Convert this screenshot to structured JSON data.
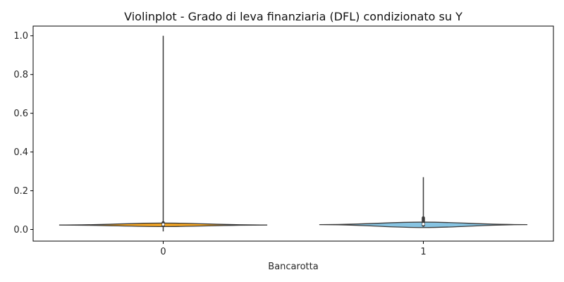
{
  "chart_data": {
    "type": "violin",
    "title": "Violinplot - Grado di leva finanziaria (DFL) condizionato su Y",
    "xlabel": "Bancarotta",
    "ylabel": "",
    "categories": [
      "0",
      "1"
    ],
    "ylim": [
      -0.06,
      1.05
    ],
    "yticks": [
      "0.0",
      "0.2",
      "0.4",
      "0.6",
      "0.8",
      "1.0"
    ],
    "grid": false,
    "colors": [
      "#f5a623",
      "#87c4e2"
    ],
    "edge_color": "#3a3a3a",
    "violins": [
      {
        "category": "0",
        "min": -0.01,
        "q1": 0.02,
        "median": 0.026,
        "q3": 0.035,
        "max": 1.0,
        "density_center": 0.023,
        "density_upper": 0.033,
        "density_lower": 0.015
      },
      {
        "category": "1",
        "min": 0.015,
        "q1": 0.022,
        "median": 0.028,
        "q3": 0.06,
        "max": 0.27,
        "density_center": 0.025,
        "density_upper": 0.038,
        "density_lower": 0.01
      }
    ]
  }
}
